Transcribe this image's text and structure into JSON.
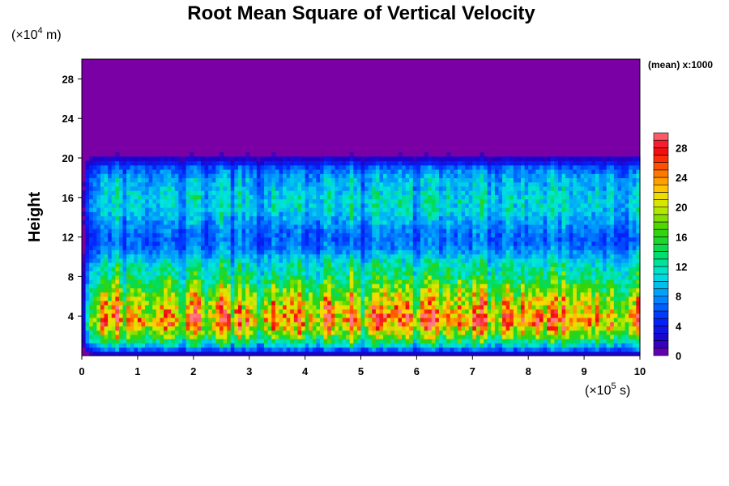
{
  "chart_data": {
    "type": "heatmap",
    "title": "Root Mean Square of Vertical Velocity",
    "xlabel": "",
    "ylabel": "Height",
    "x_unit_prefix": "(×10",
    "x_unit_exp": "5",
    "x_unit_suffix": " s)",
    "y_unit_prefix": "(×10",
    "y_unit_exp": "4",
    "y_unit_suffix": " m)",
    "xlim": [
      0,
      10
    ],
    "ylim": [
      0,
      30
    ],
    "x_ticks": [
      "0",
      "1",
      "2",
      "3",
      "4",
      "5",
      "6",
      "7",
      "8",
      "9",
      "10"
    ],
    "x_tick_values": [
      0,
      1,
      2,
      3,
      4,
      5,
      6,
      7,
      8,
      9,
      10
    ],
    "y_ticks": [
      "4",
      "8",
      "12",
      "16",
      "20",
      "24",
      "28"
    ],
    "y_tick_values": [
      4,
      8,
      12,
      16,
      20,
      24,
      28
    ],
    "colorbar": {
      "note": "(mean) x:1000",
      "min": 0,
      "max": 30,
      "tick_labels": [
        "0",
        "4",
        "8",
        "12",
        "16",
        "20",
        "24",
        "28"
      ],
      "tick_values": [
        0,
        4,
        8,
        12,
        16,
        20,
        24,
        28
      ]
    },
    "profile": {
      "heights": [
        0,
        0.5,
        1,
        2,
        3,
        3.5,
        4,
        5,
        6,
        7,
        8,
        9,
        10,
        11,
        12,
        13,
        14,
        15,
        16,
        17,
        18,
        19,
        19.5,
        20,
        20.5,
        21,
        30
      ],
      "mean_values": [
        0,
        5,
        10,
        17,
        22,
        24,
        23,
        21,
        19,
        16,
        13.5,
        12,
        9.5,
        7,
        6.5,
        7.5,
        9,
        10.5,
        10.5,
        9.5,
        8.5,
        6.5,
        4,
        2,
        0.5,
        0,
        0
      ]
    }
  }
}
